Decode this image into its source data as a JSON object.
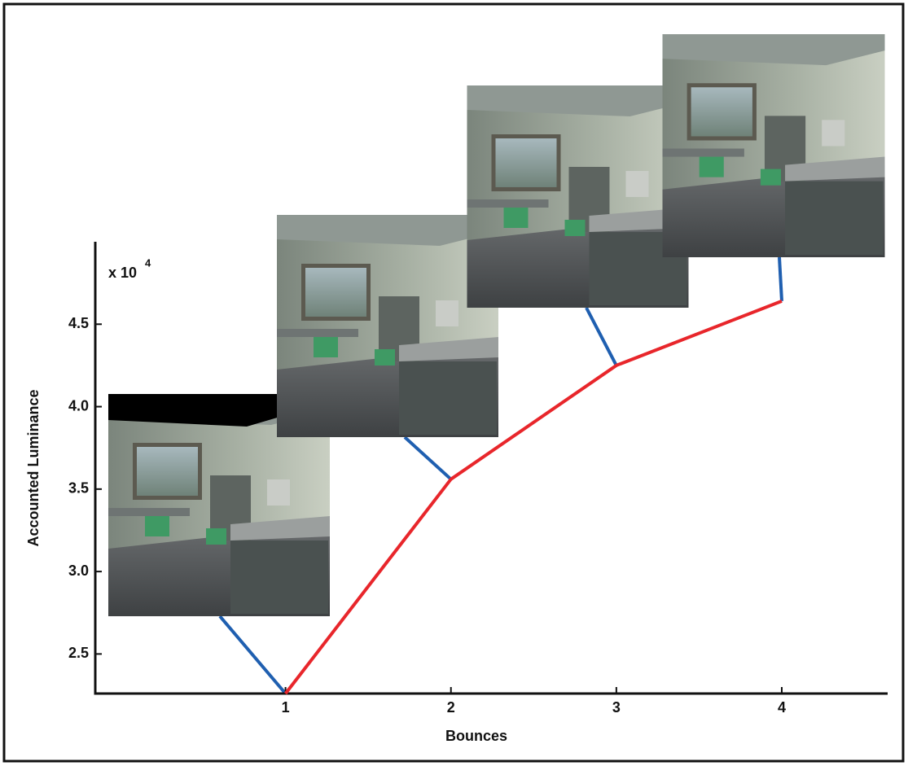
{
  "chart_data": {
    "type": "line",
    "x_label": "Bounces",
    "y_label": "Accounted Luminance",
    "y_scale_note": {
      "base": "x 10",
      "exponent": "4"
    },
    "x": [
      1,
      2,
      3,
      4
    ],
    "values": [
      2.26,
      3.56,
      4.25,
      4.64
    ],
    "color": "#e8262b",
    "connector_color": "#1f5fb0",
    "xlim": [
      -0.15,
      4.64
    ],
    "xticks": [
      1,
      2,
      3,
      4
    ],
    "ylim": [
      2.26,
      5.0
    ],
    "yticks": [
      2.5,
      {
        "value": 3,
        "label": "3.0"
      },
      3.5,
      {
        "value": 4,
        "label": "4.0"
      },
      4.5
    ],
    "grid": false
  }
}
